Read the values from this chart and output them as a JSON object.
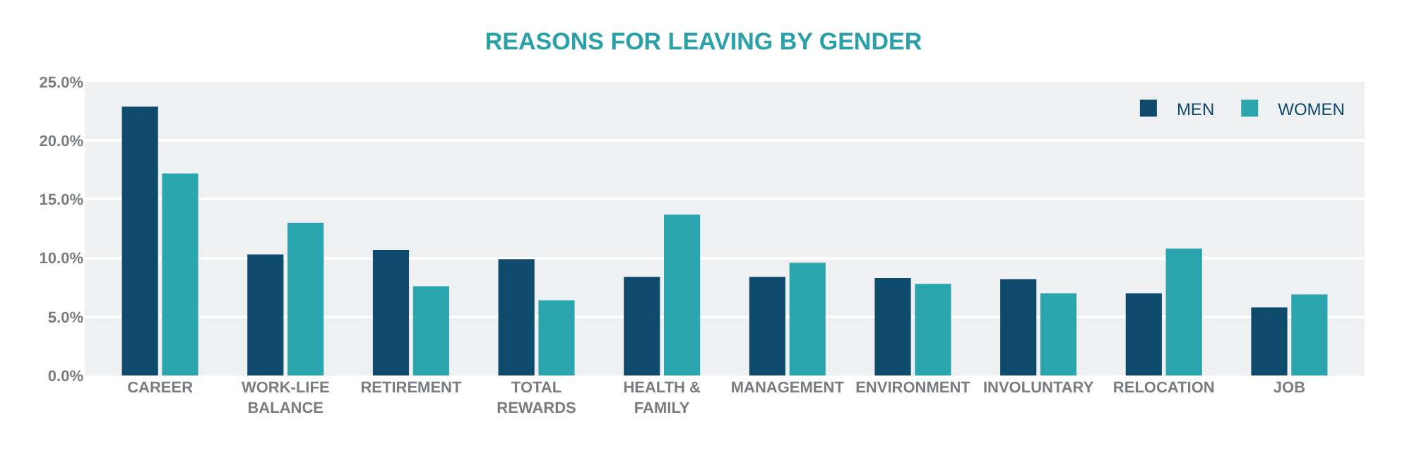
{
  "chart_data": {
    "type": "bar",
    "title": "REASONS FOR LEAVING BY GENDER",
    "categories": [
      "CAREER",
      "WORK-LIFE BALANCE",
      "RETIREMENT",
      "TOTAL REWARDS",
      "HEALTH & FAMILY",
      "MANAGEMENT",
      "ENVIRONMENT",
      "INVOLUNTARY",
      "RELOCATION",
      "JOB"
    ],
    "series": [
      {
        "name": "MEN",
        "color": "#0d4a6b",
        "values": [
          22.9,
          10.3,
          10.7,
          9.9,
          8.4,
          8.4,
          8.3,
          8.2,
          7.0,
          5.8
        ]
      },
      {
        "name": "WOMEN",
        "color": "#2ba5ad",
        "values": [
          17.2,
          13.0,
          7.6,
          6.4,
          13.7,
          9.6,
          7.8,
          7.0,
          10.8,
          6.9
        ]
      }
    ],
    "ylim": [
      0,
      25
    ],
    "yticks": [
      {
        "value": 0,
        "label": "0.0%"
      },
      {
        "value": 5,
        "label": "5.0%"
      },
      {
        "value": 10,
        "label": "10.0%"
      },
      {
        "value": 15,
        "label": "15.0%"
      },
      {
        "value": 20,
        "label": "20.0%"
      },
      {
        "value": 25,
        "label": "25.0%"
      }
    ],
    "grid": "y",
    "legend": "top right"
  }
}
